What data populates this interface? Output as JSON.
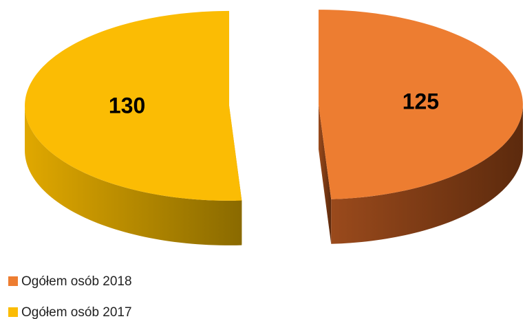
{
  "chart_data": {
    "type": "pie",
    "categories": [
      "Ogółem osób 2018",
      "Ogółem osób 2017"
    ],
    "values": [
      125,
      130
    ],
    "colors": [
      "#ED7D31",
      "#FBBC04"
    ],
    "legend": "bottom-left"
  }
}
